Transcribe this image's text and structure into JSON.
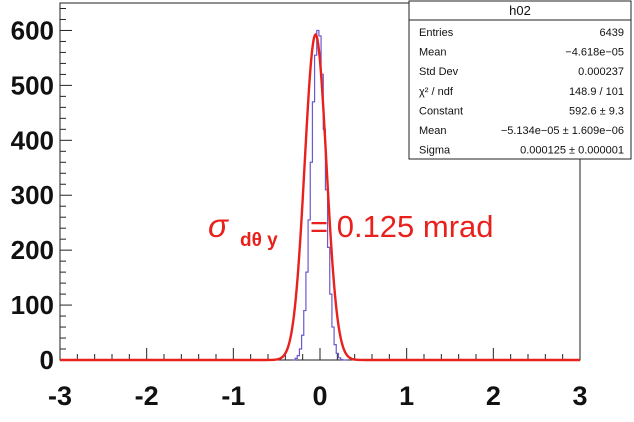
{
  "chart_data": {
    "type": "line",
    "title": "",
    "xlabel": "",
    "ylabel": "",
    "xlim": [
      -3,
      3
    ],
    "ylim": [
      0,
      650
    ],
    "x_ticks": [
      "-3",
      "-2",
      "-1",
      "0",
      "1",
      "2",
      "3"
    ],
    "y_ticks": [
      "0",
      "100",
      "200",
      "300",
      "400",
      "500",
      "600"
    ],
    "grid": false,
    "series": [
      {
        "kind": "histogram",
        "color": "#6a5acd",
        "bin_width": 0.025,
        "x": [
          -0.3,
          -0.275,
          -0.25,
          -0.225,
          -0.2,
          -0.175,
          -0.15,
          -0.125,
          -0.1,
          -0.075,
          -0.05,
          -0.025,
          0.0,
          0.025,
          0.05,
          0.075,
          0.1,
          0.125,
          0.15,
          0.175,
          0.2,
          0.225,
          0.25,
          0.275,
          0.3
        ],
        "values": [
          0,
          3,
          8,
          20,
          45,
          90,
          160,
          255,
          360,
          470,
          555,
          600,
          590,
          520,
          420,
          310,
          205,
          120,
          60,
          28,
          12,
          4,
          1,
          0,
          0
        ]
      },
      {
        "kind": "gaussian-fit",
        "color": "#e8211d",
        "constant": 592.6,
        "mean": -0.05134,
        "sigma": 0.125
      }
    ],
    "stats_box": {
      "title": "h02",
      "rows": [
        {
          "label": "Entries",
          "value": "6439"
        },
        {
          "label": "Mean",
          "value": "−4.618e−05"
        },
        {
          "label": "Std Dev",
          "value": "0.000237"
        },
        {
          "label": "χ² / ndf",
          "value": "148.9 / 101"
        },
        {
          "label": "Constant",
          "value": "592.6 ± 9.3"
        },
        {
          "label": "Mean",
          "value": "−5.134e−05 ± 1.609e−06"
        },
        {
          "label": "Sigma",
          "value": "0.000125 ± 0.000001"
        }
      ]
    },
    "annotation": {
      "sigma": "σ",
      "subscript": "dθ y",
      "rest": "= 0.125 mrad",
      "color": "#e8211d"
    }
  }
}
